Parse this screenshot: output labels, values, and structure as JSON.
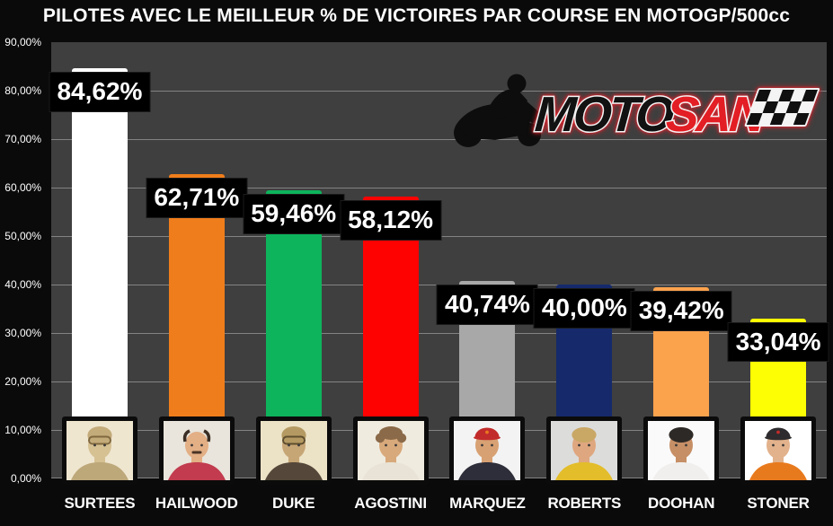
{
  "title": "PILOTES AVEC LE MEILLEUR % DE VICTOIRES PAR COURSE EN MOTOGP/500cc",
  "logo": {
    "moto": "MOTO",
    "san": "SAN"
  },
  "chart_data": {
    "type": "bar",
    "title": "PILOTES AVEC LE MEILLEUR % DE VICTOIRES PAR COURSE EN MOTOGP/500cc",
    "categories": [
      "SURTEES",
      "HAILWOOD",
      "DUKE",
      "AGOSTINI",
      "MARQUEZ",
      "ROBERTS",
      "DOOHAN",
      "STONER"
    ],
    "values": [
      84.62,
      62.71,
      59.46,
      58.12,
      40.74,
      40.0,
      39.42,
      33.04
    ],
    "value_labels": [
      "84,62%",
      "62,71%",
      "59,46%",
      "58,12%",
      "40,74%",
      "40,00%",
      "39,42%",
      "33,04%"
    ],
    "bar_colors": [
      "#ffffff",
      "#f07d1b",
      "#0db45c",
      "#fe0202",
      "#a8a8a8",
      "#15296b",
      "#fba24d",
      "#fdfd03"
    ],
    "y_ticks": [
      "90,00%",
      "80,00%",
      "70,00%",
      "60,00%",
      "50,00%",
      "40,00%",
      "30,00%",
      "20,00%",
      "10,00%",
      "0,00%"
    ],
    "ylim": [
      0,
      90
    ],
    "grid": true,
    "legend": false,
    "plot_bg": "#3f3f3f",
    "page_bg": "#0a0a0a",
    "gridline_color": "#8f8f8f"
  },
  "riders": [
    {
      "name": "SURTEES",
      "photo": {
        "bg": "#efe6d0",
        "skin": "#d6c193",
        "top": "#c3ab7a",
        "topType": "helmet",
        "shirt": "#bda87a",
        "accents": "#80693f",
        "mustache": false
      }
    },
    {
      "name": "HAILWOOD",
      "photo": {
        "bg": "#e9e5dc",
        "skin": "#e3af85",
        "top": "#3a2e24",
        "topType": "bald",
        "shirt": "#c23b4e",
        "accents": "#4a3426",
        "mustache": true
      }
    },
    {
      "name": "DUKE",
      "photo": {
        "bg": "#ece2c6",
        "skin": "#c7a676",
        "top": "#b49a62",
        "topType": "helmet",
        "shirt": "#55483a",
        "accents": "#5f4e2e",
        "mustache": false
      }
    },
    {
      "name": "AGOSTINI",
      "photo": {
        "bg": "#f0ebdf",
        "skin": "#d8a97b",
        "top": "#8a6a49",
        "topType": "curly",
        "shirt": "#e8e3d6",
        "accents": "#6e5439",
        "mustache": false
      }
    },
    {
      "name": "MARQUEZ",
      "photo": {
        "bg": "#f3f3f3",
        "skin": "#d8a173",
        "top": "#c22b2b",
        "topType": "cap",
        "shirt": "#2e2e3a",
        "accents": "#e87820",
        "mustache": false
      }
    },
    {
      "name": "ROBERTS",
      "photo": {
        "bg": "#dcdcda",
        "skin": "#dfa77f",
        "top": "#c9a765",
        "topType": "hair",
        "shirt": "#e3bd2a",
        "accents": "#caa84c",
        "mustache": false
      }
    },
    {
      "name": "DOOHAN",
      "photo": {
        "bg": "#fafafa",
        "skin": "#c68f66",
        "top": "#2d2926",
        "topType": "hair",
        "shirt": "#f0efed",
        "accents": "#3a332e",
        "mustache": false
      }
    },
    {
      "name": "STONER",
      "photo": {
        "bg": "#ffffff",
        "skin": "#e2b28c",
        "top": "#2e2c2e",
        "topType": "cap",
        "shirt": "#e87a1e",
        "accents": "#c22b2b",
        "mustache": false
      }
    }
  ]
}
